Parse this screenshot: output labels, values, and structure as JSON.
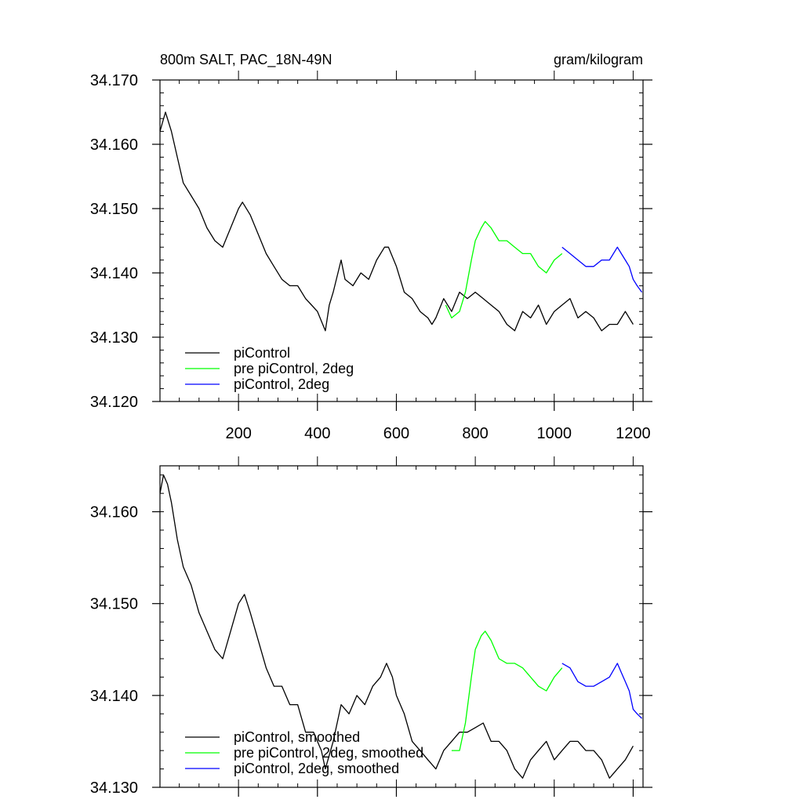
{
  "figure": {
    "title_left": "800m SALT, PAC_18N-49N",
    "title_right": "gram/kilogram"
  },
  "chart_data": [
    {
      "type": "line",
      "title": "800m SALT, PAC_18N-49N",
      "units": "gram/kilogram",
      "xlim": [
        1,
        1225
      ],
      "ylim": [
        34.12,
        34.17
      ],
      "xticks": [
        200,
        400,
        600,
        800,
        1000,
        1200
      ],
      "xtick_labels": [
        "200",
        "400",
        "600",
        "800",
        "1000",
        "1200"
      ],
      "yticks": [
        34.12,
        34.13,
        34.14,
        34.15,
        34.16,
        34.17
      ],
      "ytick_labels": [
        "34.120",
        "34.130",
        "34.140",
        "34.150",
        "34.160",
        "34.170"
      ],
      "legend": "bottom-left",
      "series": [
        {
          "name": "piControl",
          "color": "#000000",
          "x": [
            1,
            15,
            30,
            45,
            60,
            80,
            100,
            120,
            140,
            160,
            180,
            200,
            210,
            230,
            250,
            270,
            290,
            310,
            330,
            350,
            370,
            385,
            400,
            420,
            430,
            440,
            460,
            470,
            490,
            510,
            530,
            550,
            570,
            580,
            600,
            620,
            640,
            660,
            680,
            690,
            700,
            720,
            740,
            760,
            780,
            800,
            820,
            840,
            860,
            880,
            900,
            920,
            940,
            960,
            980,
            1000,
            1020,
            1040,
            1060,
            1080,
            1100,
            1120,
            1140,
            1160,
            1180,
            1200
          ],
          "y": [
            34.162,
            34.165,
            34.162,
            34.158,
            34.154,
            34.152,
            34.15,
            34.147,
            34.145,
            34.144,
            34.147,
            34.15,
            34.151,
            34.149,
            34.146,
            34.143,
            34.141,
            34.139,
            34.138,
            34.138,
            34.136,
            34.135,
            34.134,
            34.131,
            34.135,
            34.137,
            34.142,
            34.139,
            34.138,
            34.14,
            34.139,
            34.142,
            34.144,
            34.144,
            34.141,
            34.137,
            34.136,
            34.134,
            34.133,
            34.132,
            34.133,
            34.136,
            34.134,
            34.137,
            34.136,
            34.137,
            34.136,
            34.135,
            34.134,
            34.132,
            34.131,
            34.134,
            34.133,
            34.135,
            34.132,
            34.134,
            34.135,
            34.136,
            34.133,
            34.134,
            34.133,
            34.131,
            34.132,
            34.132,
            34.134,
            34.132
          ]
        },
        {
          "name": "pre piControl, 2deg",
          "color": "#00ff00",
          "x": [
            725,
            740,
            760,
            775,
            790,
            800,
            815,
            825,
            840,
            860,
            880,
            900,
            920,
            940,
            960,
            980,
            1000,
            1020
          ],
          "y": [
            34.135,
            34.133,
            34.134,
            34.137,
            34.142,
            34.145,
            34.147,
            34.148,
            34.147,
            34.145,
            34.145,
            34.144,
            34.143,
            34.143,
            34.141,
            34.14,
            34.142,
            34.143
          ]
        },
        {
          "name": "piControl, 2deg",
          "color": "#0000ff",
          "x": [
            1020,
            1040,
            1060,
            1080,
            1100,
            1120,
            1140,
            1160,
            1170,
            1180,
            1190,
            1200,
            1210,
            1222
          ],
          "y": [
            34.144,
            34.143,
            34.142,
            34.141,
            34.141,
            34.142,
            34.142,
            34.144,
            34.143,
            34.142,
            34.141,
            34.139,
            34.138,
            34.137
          ]
        }
      ]
    },
    {
      "type": "line",
      "xlim": [
        1,
        1225
      ],
      "ylim": [
        34.13,
        34.165
      ],
      "yticks": [
        34.13,
        34.14,
        34.15,
        34.16
      ],
      "ytick_labels": [
        "34.130",
        "34.140",
        "34.150",
        "34.160"
      ],
      "legend": "bottom-left",
      "series": [
        {
          "name": "piControl, smoothed",
          "color": "#000000",
          "x": [
            1,
            10,
            20,
            30,
            45,
            60,
            80,
            100,
            120,
            140,
            160,
            180,
            200,
            215,
            230,
            250,
            270,
            290,
            310,
            330,
            350,
            370,
            390,
            410,
            420,
            440,
            460,
            480,
            500,
            520,
            540,
            560,
            575,
            590,
            600,
            620,
            640,
            660,
            680,
            700,
            720,
            740,
            760,
            780,
            800,
            820,
            840,
            860,
            880,
            900,
            920,
            940,
            960,
            980,
            1000,
            1020,
            1040,
            1060,
            1080,
            1100,
            1120,
            1140,
            1160,
            1180,
            1200
          ],
          "y": [
            34.162,
            34.164,
            34.163,
            34.161,
            34.157,
            34.154,
            34.152,
            34.149,
            34.147,
            34.145,
            34.144,
            34.147,
            34.15,
            34.151,
            34.149,
            34.146,
            34.143,
            34.141,
            34.141,
            34.139,
            34.139,
            34.136,
            34.136,
            34.134,
            34.132,
            34.135,
            34.139,
            34.138,
            34.14,
            34.139,
            34.141,
            34.142,
            34.1435,
            34.142,
            34.14,
            34.138,
            34.135,
            34.134,
            34.133,
            34.132,
            34.134,
            34.135,
            34.136,
            34.136,
            34.1365,
            34.137,
            34.135,
            34.135,
            34.134,
            34.132,
            34.131,
            34.133,
            34.134,
            34.135,
            34.133,
            34.134,
            34.135,
            34.135,
            34.134,
            34.134,
            34.133,
            34.131,
            34.132,
            34.133,
            34.1345
          ]
        },
        {
          "name": "pre piControl, 2deg, smoothed",
          "color": "#00ff00",
          "x": [
            740,
            760,
            775,
            790,
            800,
            815,
            825,
            840,
            860,
            880,
            900,
            920,
            940,
            960,
            980,
            1000,
            1020
          ],
          "y": [
            34.134,
            34.134,
            34.137,
            34.142,
            34.145,
            34.1465,
            34.147,
            34.146,
            34.144,
            34.1435,
            34.1435,
            34.143,
            34.142,
            34.141,
            34.1405,
            34.142,
            34.143
          ]
        },
        {
          "name": "piControl, 2deg, smoothed",
          "color": "#0000ff",
          "x": [
            1020,
            1040,
            1060,
            1080,
            1100,
            1120,
            1140,
            1160,
            1170,
            1180,
            1190,
            1200,
            1210,
            1222
          ],
          "y": [
            34.1435,
            34.143,
            34.1415,
            34.141,
            34.141,
            34.1415,
            34.142,
            34.1435,
            34.1425,
            34.1415,
            34.1405,
            34.1385,
            34.138,
            34.1375
          ]
        }
      ]
    }
  ]
}
